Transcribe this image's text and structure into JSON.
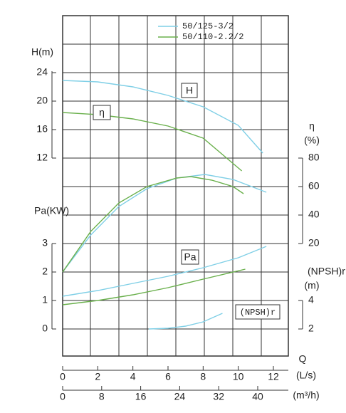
{
  "chart_data": {
    "type": "line",
    "x_axes": [
      {
        "title": "Q",
        "label": "(L/s)",
        "xlim": [
          0,
          12
        ],
        "xticks": [
          0,
          2,
          4,
          6,
          8,
          10,
          12
        ]
      },
      {
        "label": "(m³/h)",
        "xlim": [
          0,
          40
        ],
        "xticks": [
          0,
          8,
          16,
          24,
          32,
          40
        ]
      }
    ],
    "y_axes": {
      "H": {
        "label": "H(m)",
        "ylim": [
          12,
          24
        ],
        "yticks": [
          12,
          16,
          20,
          24
        ]
      },
      "eta": {
        "label": "η",
        "unit": "(%)",
        "ylim": [
          20,
          80
        ],
        "yticks": [
          20,
          40,
          60,
          80
        ]
      },
      "Pa": {
        "label": "Pa(KW)",
        "ylim": [
          0,
          3
        ],
        "yticks": [
          0,
          1,
          2,
          3
        ]
      },
      "NPSH": {
        "label": "(NPSH)r",
        "unit": "(m)",
        "ylim": [
          2,
          4
        ],
        "yticks": [
          2,
          4
        ]
      }
    },
    "annotations": {
      "H": "H",
      "eta": "η",
      "Pa": "Pa",
      "NPSH": "(NPSH)r"
    },
    "series": [
      {
        "name": "50/125-3/2",
        "color": "#7fcfe6",
        "curves": {
          "H": {
            "x": [
              0,
              2,
              4,
              6,
              8,
              10,
              11.4
            ],
            "values": [
              22.9,
              22.7,
              22.0,
              20.8,
              19.2,
              16.6,
              12.7
            ]
          },
          "eta": {
            "x": [
              0,
              1.6,
              3.2,
              4.8,
              6.5,
              8.1,
              9.7,
              11.6
            ],
            "values": [
              0,
              26,
              46,
              58.5,
              66,
              68.5,
              65,
              56
            ]
          },
          "Pa": {
            "x": [
              0,
              2,
              4,
              6,
              8,
              10,
              11.6
            ],
            "values": [
              1.15,
              1.35,
              1.6,
              1.85,
              2.15,
              2.5,
              2.9
            ]
          },
          "NPSH": {
            "x": [
              4.9,
              6,
              7,
              8,
              9.1
            ],
            "values": [
              2.0,
              2.05,
              2.2,
              2.5,
              3.1
            ]
          }
        }
      },
      {
        "name": "50/110-2.2/2",
        "color": "#6ab04c",
        "curves": {
          "H": {
            "x": [
              0,
              2,
              4,
              6,
              8,
              10.2
            ],
            "values": [
              18.4,
              18.1,
              17.5,
              16.5,
              14.8,
              10.2
            ]
          },
          "eta": {
            "x": [
              0,
              1.6,
              3.2,
              4.8,
              6.5,
              7.3,
              8.5,
              9.7,
              10.3
            ],
            "values": [
              0,
              28.5,
              48.5,
              60,
              66,
              67,
              64.5,
              60,
              55
            ]
          },
          "Pa": {
            "x": [
              0,
              2,
              4,
              6,
              8,
              10.4
            ],
            "values": [
              0.85,
              1.0,
              1.2,
              1.45,
              1.75,
              2.1
            ]
          }
        }
      }
    ]
  }
}
